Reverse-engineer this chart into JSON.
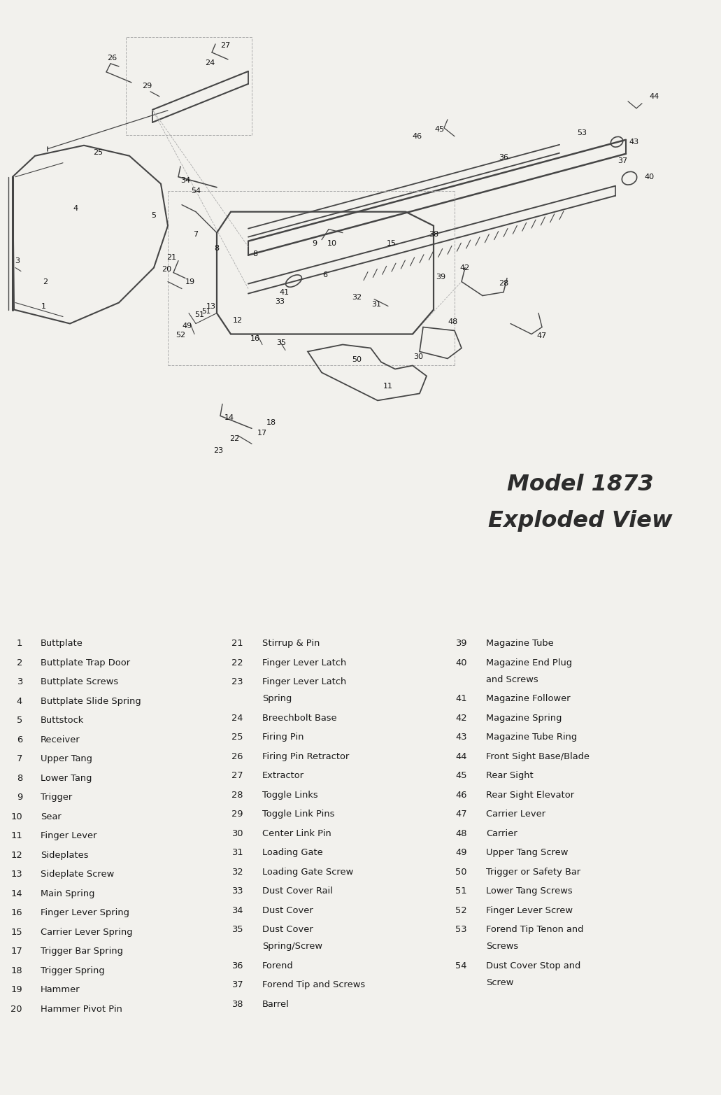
{
  "title": "Model 1873",
  "subtitle": "Exploded View",
  "bg_color": "#f2f1ed",
  "title_color": "#2c2c2c",
  "text_color": "#1a1a1a",
  "parts_col1": [
    [
      "1",
      "Buttplate"
    ],
    [
      "2",
      "Buttplate Trap Door"
    ],
    [
      "3",
      "Buttplate Screws"
    ],
    [
      "4",
      "Buttplate Slide Spring"
    ],
    [
      "5",
      "Buttstock"
    ],
    [
      "6",
      "Receiver"
    ],
    [
      "7",
      "Upper Tang"
    ],
    [
      "8",
      "Lower Tang"
    ],
    [
      "9",
      "Trigger"
    ],
    [
      "10",
      "Sear"
    ],
    [
      "11",
      "Finger Lever"
    ],
    [
      "12",
      "Sideplates"
    ],
    [
      "13",
      "Sideplate Screw"
    ],
    [
      "14",
      "Main Spring"
    ],
    [
      "16",
      "Finger Lever Spring"
    ],
    [
      "15",
      "Carrier Lever Spring"
    ],
    [
      "17",
      "Trigger Bar Spring"
    ],
    [
      "18",
      "Trigger Spring"
    ],
    [
      "19",
      "Hammer"
    ],
    [
      "20",
      "Hammer Pivot Pin"
    ]
  ],
  "parts_col2": [
    [
      "21",
      "Stirrup & Pin"
    ],
    [
      "22",
      "Finger Lever Latch"
    ],
    [
      "23",
      "Finger Lever Latch\nSpring"
    ],
    [
      "24",
      "Breechbolt Base"
    ],
    [
      "25",
      "Firing Pin"
    ],
    [
      "26",
      "Firing Pin Retractor"
    ],
    [
      "27",
      "Extractor"
    ],
    [
      "28",
      "Toggle Links"
    ],
    [
      "29",
      "Toggle Link Pins"
    ],
    [
      "30",
      "Center Link Pin"
    ],
    [
      "31",
      "Loading Gate"
    ],
    [
      "32",
      "Loading Gate Screw"
    ],
    [
      "33",
      "Dust Cover Rail"
    ],
    [
      "34",
      "Dust Cover"
    ],
    [
      "35",
      "Dust Cover\nSpring/Screw"
    ],
    [
      "36",
      "Forend"
    ],
    [
      "37",
      "Forend Tip and Screws"
    ],
    [
      "38",
      "Barrel"
    ]
  ],
  "parts_col3": [
    [
      "39",
      "Magazine Tube"
    ],
    [
      "40",
      "Magazine End Plug\nand Screws"
    ],
    [
      "41",
      "Magazine Follower"
    ],
    [
      "42",
      "Magazine Spring"
    ],
    [
      "43",
      "Magazine Tube Ring"
    ],
    [
      "44",
      "Front Sight Base/Blade"
    ],
    [
      "45",
      "Rear Sight"
    ],
    [
      "46",
      "Rear Sight Elevator"
    ],
    [
      "47",
      "Carrier Lever"
    ],
    [
      "48",
      "Carrier"
    ],
    [
      "49",
      "Upper Tang Screw"
    ],
    [
      "50",
      "Trigger or Safety Bar"
    ],
    [
      "51",
      "Lower Tang Screws"
    ],
    [
      "52",
      "Finger Lever Screw"
    ],
    [
      "53",
      "Forend Tip Tenon and\nScrews"
    ],
    [
      "54",
      "Dust Cover Stop and\nScrew"
    ]
  ],
  "figsize": [
    10.31,
    15.65
  ],
  "dpi": 100
}
